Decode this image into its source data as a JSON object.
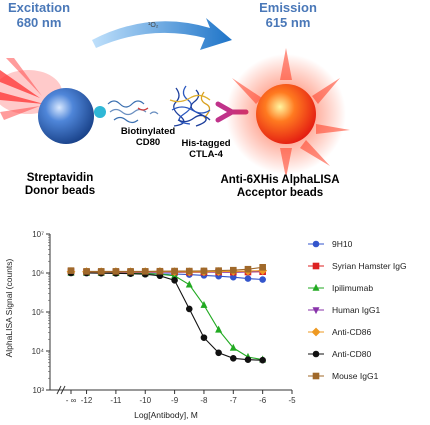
{
  "schematic": {
    "excitation_label": "Excitation",
    "excitation_wavelength": "680 nm",
    "emission_label": "Emission",
    "emission_wavelength": "615 nm",
    "singlet_oxygen": "¹O₂",
    "donor_label_line1": "Streptavidin",
    "donor_label_line2": "Donor beads",
    "biotinylated_line1": "Biotinylated",
    "biotinylated_line2": "CD80",
    "his_tagged_line1": "His-tagged",
    "his_tagged_line2": "CTLA-4",
    "acceptor_label_line1": "Anti-6XHis AlphaLISA",
    "acceptor_label_line2": "Acceptor beads",
    "colors": {
      "text_blue": "#4a78b8",
      "donor_bead": "#2a5fa8",
      "acceptor_bead": "#ff3a1a",
      "arrow": "#3d8fd6"
    }
  },
  "chart_data": {
    "type": "scatter",
    "xlabel": "Log[Antibody], M",
    "ylabel": "AlphaLISA Signal (counts)",
    "y_scale": "log",
    "ylim": [
      1000,
      10000000
    ],
    "xlim": [
      -12.7,
      -5
    ],
    "x_ticks": [
      -12,
      -11,
      -10,
      -9,
      -8,
      -7,
      -6,
      -5
    ],
    "x_tick_labels": [
      "-12",
      "-11",
      "-10",
      "-9",
      "-8",
      "-7",
      "-6",
      "-5"
    ],
    "x_break_label": "- ∞",
    "y_ticks": [
      1000,
      10000,
      100000,
      1000000,
      10000000
    ],
    "y_tick_labels": [
      "10³",
      "10⁴",
      "10⁵",
      "10⁶",
      "10⁷"
    ],
    "x_points": [
      -12,
      -11.5,
      -11,
      -10.5,
      -10,
      -9.5,
      -9,
      -8.5,
      -8,
      -7.5,
      -7,
      -6.5,
      -6
    ],
    "series": [
      {
        "name": "9H10",
        "color": "#3355cc",
        "marker": "circle",
        "zero_value": 1050000,
        "values": [
          1000000,
          1000000,
          990000,
          980000,
          970000,
          950000,
          940000,
          910000,
          870000,
          830000,
          780000,
          720000,
          680000
        ]
      },
      {
        "name": "Syrian Hamster IgG",
        "color": "#dd2222",
        "marker": "square",
        "zero_value": 1100000,
        "values": [
          1050000,
          1040000,
          1050000,
          1030000,
          1050000,
          1050000,
          1060000,
          1050000,
          1050000,
          1060000,
          1050000,
          1060000,
          1080000
        ]
      },
      {
        "name": "Ipilimumab",
        "color": "#22aa22",
        "marker": "triangle-up",
        "zero_value": 1000000,
        "values": [
          1000000,
          1000000,
          990000,
          980000,
          970000,
          930000,
          850000,
          500000,
          150000,
          35000,
          12000,
          7000,
          6000
        ]
      },
      {
        "name": "Human IgG1",
        "color": "#8833aa",
        "marker": "triangle-down",
        "zero_value": 1050000,
        "values": [
          1050000,
          1040000,
          1050000,
          1040000,
          1050000,
          1060000,
          1040000,
          1050000,
          1060000,
          1050000,
          1050000,
          1060000,
          1100000
        ]
      },
      {
        "name": "Anti-CD86",
        "color": "#ee9922",
        "marker": "diamond",
        "zero_value": 1080000,
        "values": [
          1080000,
          1070000,
          1080000,
          1070000,
          1080000,
          1090000,
          1080000,
          1070000,
          1080000,
          1090000,
          1100000,
          1120000,
          1150000
        ]
      },
      {
        "name": "Anti-CD80",
        "color": "#111111",
        "marker": "circle",
        "zero_value": 1000000,
        "values": [
          1000000,
          990000,
          980000,
          960000,
          930000,
          850000,
          650000,
          120000,
          22000,
          9000,
          6500,
          6000,
          5800
        ]
      },
      {
        "name": "Mouse IgG1",
        "color": "#a0692a",
        "marker": "square",
        "zero_value": 1150000,
        "values": [
          1100000,
          1100000,
          1100000,
          1100000,
          1100000,
          1110000,
          1120000,
          1120000,
          1130000,
          1150000,
          1180000,
          1250000,
          1400000
        ]
      }
    ],
    "legend_position": "right"
  }
}
